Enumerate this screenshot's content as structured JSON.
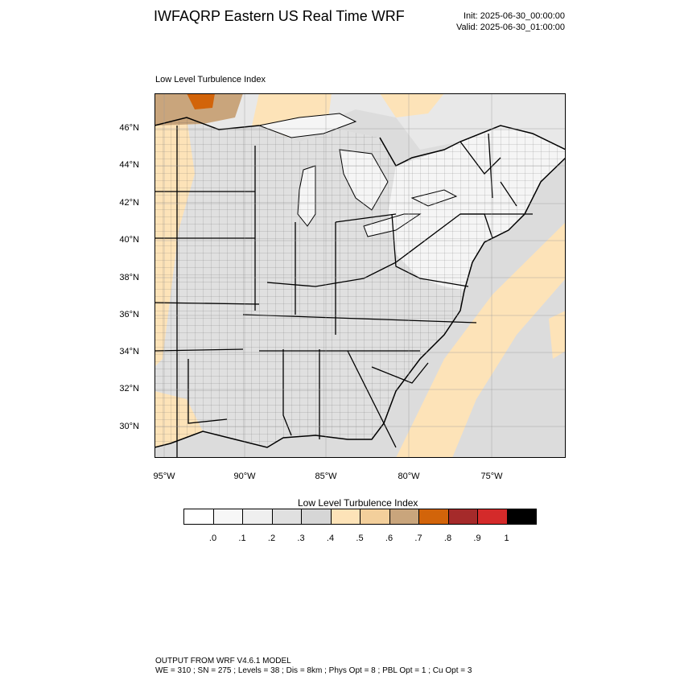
{
  "header": {
    "title": "IWFAQRP Eastern US Real Time WRF",
    "init": "Init: 2025-06-30_00:00:00",
    "valid": "Valid: 2025-06-30_01:00:00"
  },
  "map": {
    "panel_label": "Low Level Turbulence Index",
    "lat_labels": [
      "46°N",
      "44°N",
      "42°N",
      "40°N",
      "38°N",
      "36°N",
      "34°N",
      "32°N",
      "30°N"
    ],
    "lon_labels": [
      "95°W",
      "90°W",
      "85°W",
      "80°W",
      "75°W"
    ],
    "colors": {
      "ocean": "#dcdcdc",
      "land_low": "#f5f5f5",
      "land_mid": "#e8e8e8",
      "land_gray": "#d6d6d6",
      "tan_light": "#fde3b8",
      "tan_mid": "#f3cf9b",
      "tan_dark": "#c9a57c",
      "orange": "#d2640a",
      "boundary": "#000000"
    }
  },
  "colorbar": {
    "title": "Low Level Turbulence Index",
    "colors": [
      "#ffffff",
      "#f7f7f7",
      "#efefef",
      "#e0e0e0",
      "#d6d6d6",
      "#fde3b8",
      "#f3cf9b",
      "#c9a57c",
      "#d2640a",
      "#a52a2a",
      "#d42a2a",
      "#000000"
    ],
    "labels": [
      ".0",
      ".1",
      ".2",
      ".3",
      ".4",
      ".5",
      ".6",
      ".7",
      ".8",
      ".9",
      "1"
    ]
  },
  "footer": {
    "line1": "OUTPUT FROM WRF V4.6.1 MODEL",
    "line2": "WE = 310 ; SN = 275 ; Levels = 38 ; Dis = 8km ; Phys Opt = 8 ; PBL Opt = 1 ; Cu Opt = 3"
  }
}
